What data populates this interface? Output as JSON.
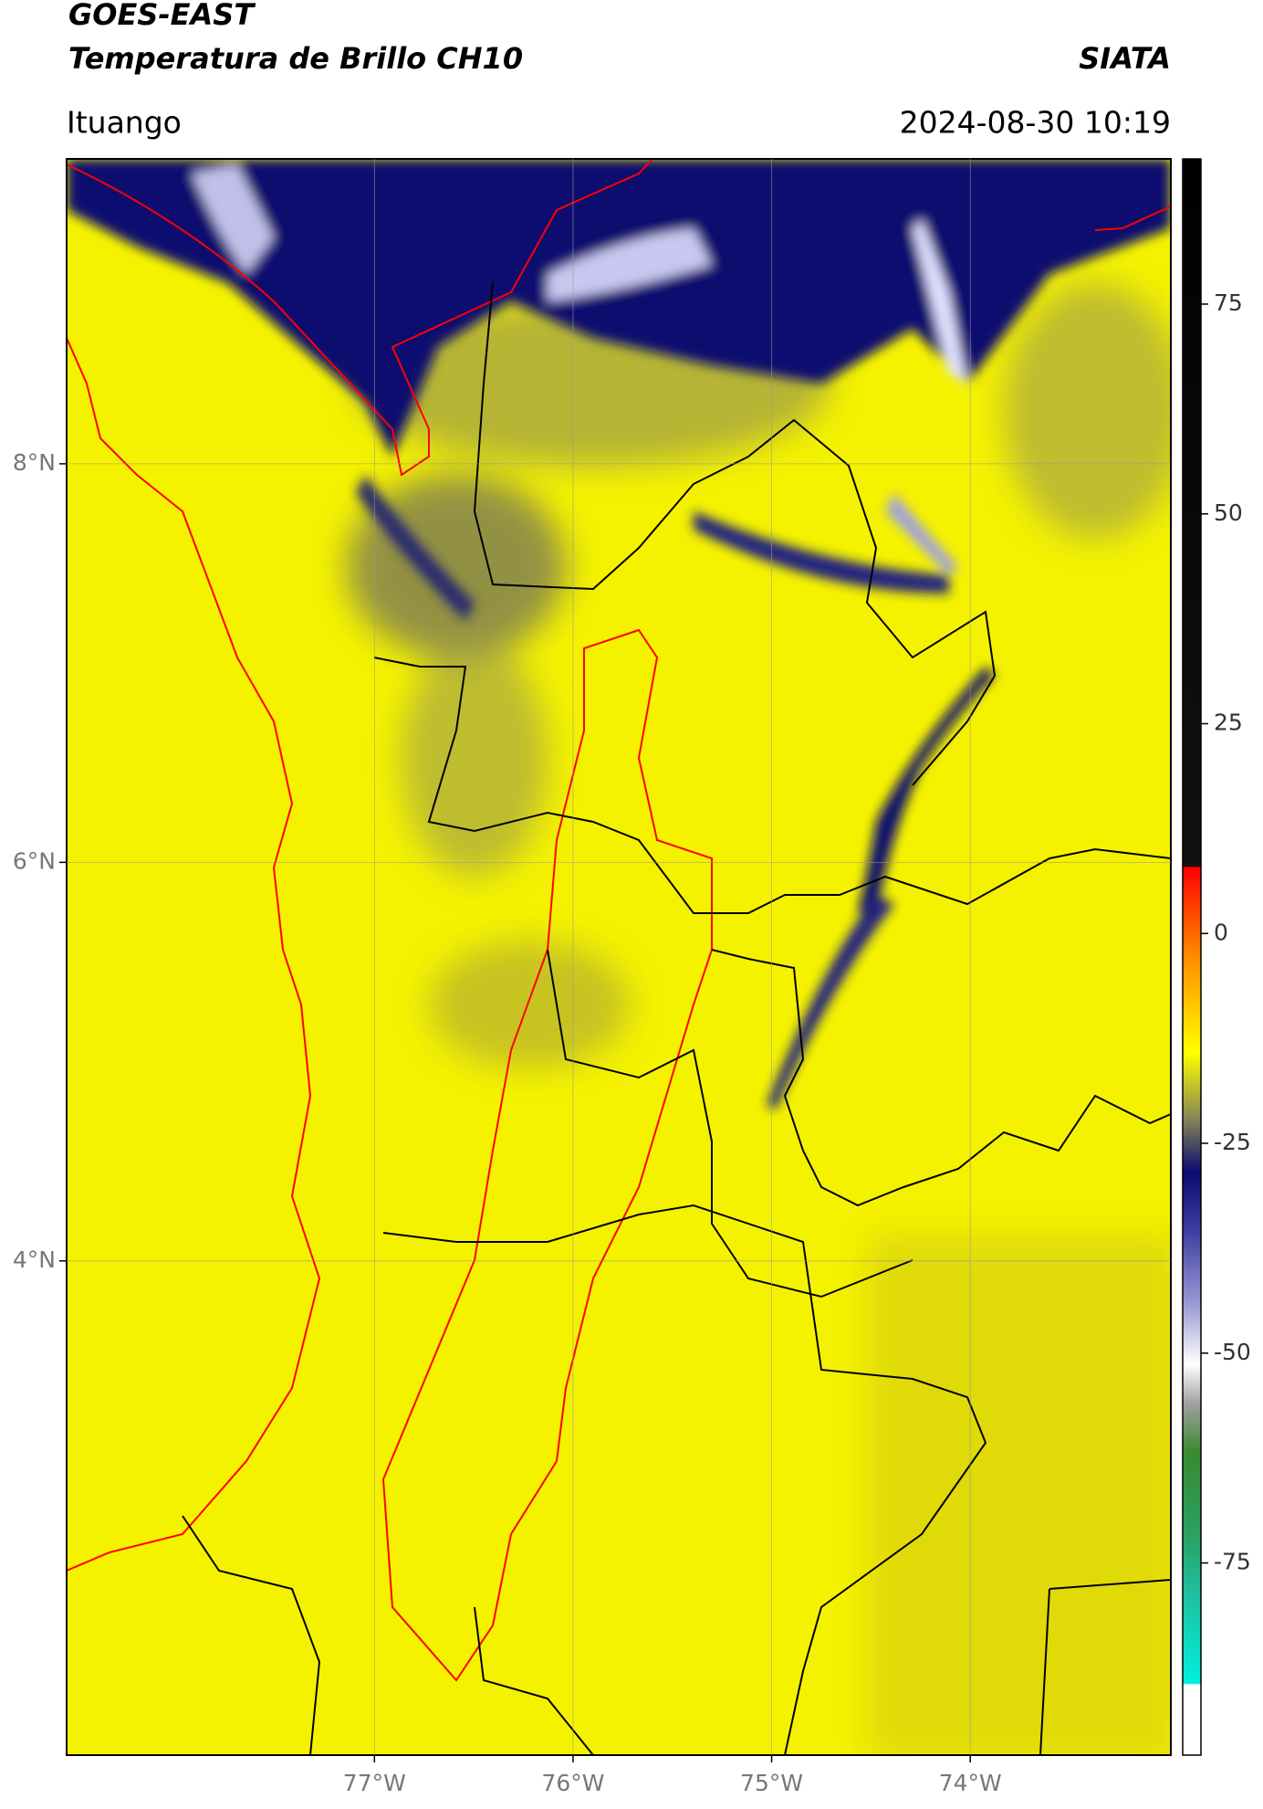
{
  "header": {
    "title": "GOES-EAST",
    "subtitle": "Temperatura de Brillo CH10",
    "brand": "SIATA",
    "region": "Ituango",
    "datetime": "2024-08-30 10:19"
  },
  "map": {
    "xlim": [
      -78.55,
      -72.99
    ],
    "ylim": [
      1.52,
      9.53
    ],
    "xticks": [
      {
        "value": -77,
        "label": "77°W"
      },
      {
        "value": -76,
        "label": "76°W"
      },
      {
        "value": -75,
        "label": "75°W"
      },
      {
        "value": -74,
        "label": "74°W"
      }
    ],
    "yticks": [
      {
        "value": 8,
        "label": "8°N"
      },
      {
        "value": 6,
        "label": "6°N"
      },
      {
        "value": 4,
        "label": "4°N"
      }
    ],
    "grid": true
  },
  "colorbar": {
    "lim": [
      -97.9,
      92.3
    ],
    "ticks": [
      75,
      50,
      25,
      0,
      -25,
      -50,
      -75
    ]
  }
}
